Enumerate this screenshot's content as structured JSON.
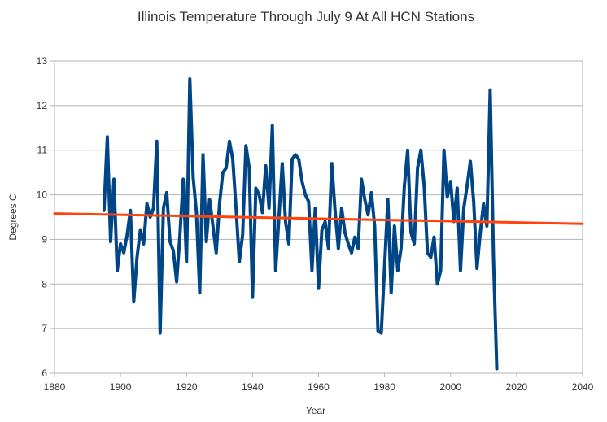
{
  "chart_data": {
    "type": "line",
    "title": "Illinois Temperature Through July 9 At All HCN Stations",
    "xlabel": "Year",
    "ylabel": "Degrees C",
    "xlim": [
      1880,
      2040
    ],
    "ylim": [
      6,
      13
    ],
    "xticks": [
      1880,
      1900,
      1920,
      1940,
      1960,
      1980,
      2000,
      2020,
      2040
    ],
    "yticks": [
      6,
      7,
      8,
      9,
      10,
      11,
      12,
      13
    ],
    "grid": "horizontal",
    "legend": "none",
    "series": [
      {
        "color": "#004586",
        "x": [
          1895,
          1896,
          1897,
          1898,
          1899,
          1900,
          1901,
          1902,
          1903,
          1904,
          1905,
          1906,
          1907,
          1908,
          1909,
          1910,
          1911,
          1912,
          1913,
          1914,
          1915,
          1916,
          1917,
          1918,
          1919,
          1920,
          1921,
          1922,
          1923,
          1924,
          1925,
          1926,
          1927,
          1928,
          1929,
          1930,
          1931,
          1932,
          1933,
          1934,
          1935,
          1936,
          1937,
          1938,
          1939,
          1940,
          1941,
          1942,
          1943,
          1944,
          1945,
          1946,
          1947,
          1948,
          1949,
          1950,
          1951,
          1952,
          1953,
          1954,
          1955,
          1956,
          1957,
          1958,
          1959,
          1960,
          1961,
          1962,
          1963,
          1964,
          1965,
          1966,
          1967,
          1968,
          1969,
          1970,
          1971,
          1972,
          1973,
          1974,
          1975,
          1976,
          1977,
          1978,
          1979,
          1980,
          1981,
          1982,
          1983,
          1984,
          1985,
          1986,
          1987,
          1988,
          1989,
          1990,
          1991,
          1992,
          1993,
          1994,
          1995,
          1996,
          1997,
          1998,
          1999,
          2000,
          2001,
          2002,
          2003,
          2004,
          2005,
          2006,
          2007,
          2008,
          2009,
          2010,
          2011,
          2012,
          2013,
          2014
        ],
        "values": [
          9.65,
          11.3,
          8.95,
          10.35,
          8.3,
          8.9,
          8.7,
          9.1,
          9.65,
          7.6,
          8.6,
          9.2,
          8.9,
          9.8,
          9.5,
          9.7,
          11.2,
          6.9,
          9.7,
          10.05,
          8.95,
          8.75,
          8.05,
          9.1,
          10.35,
          8.5,
          12.6,
          10.4,
          9.6,
          7.8,
          10.9,
          8.95,
          9.9,
          9.3,
          8.7,
          9.8,
          10.5,
          10.6,
          11.2,
          10.8,
          9.7,
          8.5,
          9.1,
          11.1,
          10.6,
          7.7,
          10.15,
          10.0,
          9.6,
          10.65,
          9.7,
          11.55,
          8.3,
          9.5,
          10.7,
          9.4,
          8.9,
          10.8,
          10.9,
          10.8,
          10.3,
          10.0,
          9.85,
          8.3,
          9.7,
          7.9,
          9.2,
          9.4,
          8.8,
          10.7,
          9.65,
          8.8,
          9.7,
          9.15,
          8.9,
          8.7,
          9.05,
          8.8,
          10.35,
          9.9,
          9.55,
          10.05,
          9.3,
          6.95,
          6.9,
          8.4,
          9.9,
          7.8,
          9.3,
          8.3,
          8.8,
          10.2,
          11.0,
          9.15,
          8.9,
          10.6,
          11.0,
          10.2,
          8.7,
          8.6,
          9.05,
          8.0,
          8.3,
          11.0,
          9.95,
          10.3,
          9.4,
          10.15,
          8.3,
          9.7,
          10.2,
          10.75,
          9.85,
          8.35,
          9.15,
          9.8,
          9.3,
          12.35,
          8.6,
          6.1
        ]
      },
      {
        "color": "#ff420e",
        "type": "trend",
        "x": [
          1880,
          2040
        ],
        "values": [
          9.58,
          9.35
        ]
      }
    ]
  }
}
